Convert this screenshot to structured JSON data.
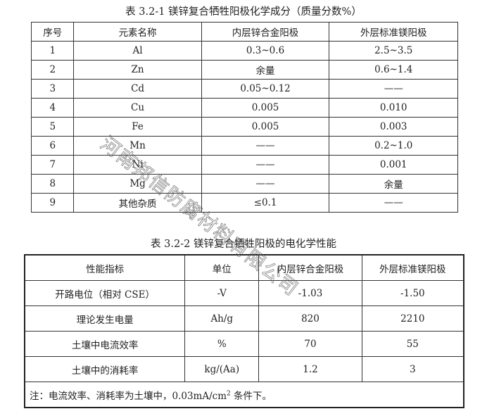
{
  "table1": {
    "title": "表 3.2-1  镁锌复合牺牲阳极化学成分（质量分数%）",
    "headers": [
      "序号",
      "元素名称",
      "内层锌合金阳极",
      "外层标准镁阳极"
    ],
    "rows": [
      [
        "1",
        "Al",
        "0.3~0.6",
        "2.5~3.5"
      ],
      [
        "2",
        "Zn",
        "余量",
        "0.6~1.4"
      ],
      [
        "3",
        "Cd",
        "0.05~0.12",
        "——"
      ],
      [
        "4",
        "Cu",
        "0.005",
        "0.010"
      ],
      [
        "5",
        "Fe",
        "0.005",
        "0.003"
      ],
      [
        "6",
        "Mn",
        "——",
        "0.2~1.0"
      ],
      [
        "7",
        "Ni",
        "——",
        "0.001"
      ],
      [
        "8",
        "Mg",
        "——",
        "余量"
      ],
      [
        "9",
        "其他杂质",
        "≤0.1",
        "——"
      ]
    ]
  },
  "table2": {
    "title": "表 3.2-2  镁锌复合牺牲阳极的电化学性能",
    "headers": [
      "性能指标",
      "单位",
      "内层锌合金阳极",
      "外层标准镁阳极"
    ],
    "rows": [
      [
        "开路电位（相对 CSE）",
        "-V",
        "-1.03",
        "-1.50"
      ],
      [
        "理论发生电量",
        "Ah/g",
        "820",
        "2210"
      ],
      [
        "土壤中电流效率",
        "%",
        "70",
        "55"
      ],
      [
        "土壤中的消耗率",
        "kg/(Aa)",
        "1.2",
        "3"
      ]
    ],
    "note_prefix": "注：电流效率、消耗率为土壤中，0.03mA/cm",
    "note_sup": "2",
    "note_suffix": " 条件下。"
  },
  "watermark": "河南邦信防腐材料有限公司"
}
